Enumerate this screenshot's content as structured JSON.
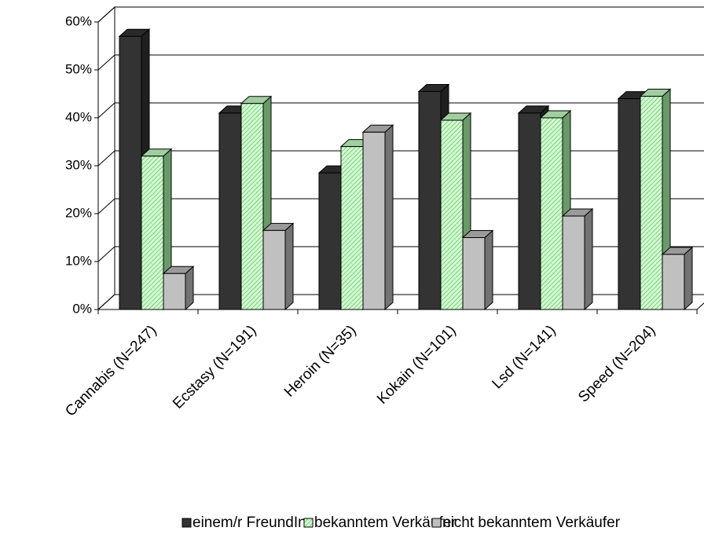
{
  "chart_data": {
    "type": "bar3d",
    "categories": [
      "Cannabis (N=247)",
      "Ecstasy (N=191)",
      "Heroin (N=35)",
      "Kokain (N=101)",
      "Lsd (N=141)",
      "Speed (N=204)"
    ],
    "series": [
      {
        "name": "einem/r FreundIn",
        "color": "#333333",
        "values": [
          57,
          41,
          28.5,
          45.5,
          41,
          44
        ]
      },
      {
        "name": "bekanntem Verkäufer",
        "color": "#ccffcc",
        "values": [
          32,
          43,
          34,
          39.5,
          40,
          44.5
        ]
      },
      {
        "name": "nicht bekanntem Verkäufer",
        "color": "#c0c0c0",
        "values": [
          7.5,
          16.5,
          37,
          15,
          19.5,
          11.5
        ]
      }
    ],
    "ylim": [
      0,
      60
    ],
    "yticks": [
      {
        "value": 0,
        "label": "0%"
      },
      {
        "value": 10,
        "label": "10%"
      },
      {
        "value": 20,
        "label": "20%"
      },
      {
        "value": 30,
        "label": "30%"
      },
      {
        "value": 40,
        "label": "40%"
      },
      {
        "value": 50,
        "label": "50%"
      },
      {
        "value": 60,
        "label": "60%"
      }
    ],
    "grid": true,
    "legend": "bottom"
  }
}
